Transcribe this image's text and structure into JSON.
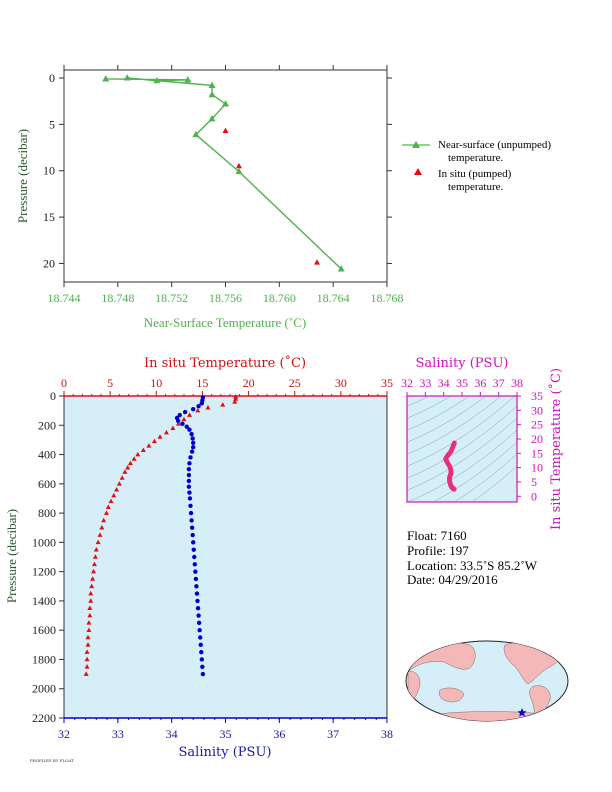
{
  "colors": {
    "near_surface": "#4db34d",
    "insitu_temp": "#e01010",
    "salinity": "#0000cc",
    "ts_accent": "#d010c0",
    "ts_points": "#e8307a",
    "profile_bg": "#d6eef8",
    "land": "#f4b8b8",
    "ocean": "#d6eef8"
  },
  "chart_data": [
    {
      "type": "line",
      "id": "near-surface",
      "xlabel": "Near-Surface Temperature (˚C)",
      "ylabel": "Pressure (decibar)",
      "xlim": [
        18.744,
        18.768
      ],
      "ylim": [
        0,
        22
      ],
      "y_inverted": true,
      "x_ticks": [
        "18.744",
        "18.748",
        "18.752",
        "18.756",
        "18.760",
        "18.764",
        "18.768"
      ],
      "y_ticks": [
        "0",
        "5",
        "10",
        "15",
        "20"
      ],
      "series": [
        {
          "name": "Near-surface (unpumped) temperature.",
          "marker": "triangle-line",
          "points": [
            [
              18.7471,
              0.1
            ],
            [
              18.7532,
              0.2
            ],
            [
              18.7509,
              0.3
            ],
            [
              18.7487,
              0.0
            ],
            [
              18.755,
              0.8
            ],
            [
              18.755,
              1.8
            ],
            [
              18.756,
              2.8
            ],
            [
              18.755,
              4.4
            ],
            [
              18.7538,
              6.1
            ],
            [
              18.757,
              10.1
            ],
            [
              18.7646,
              20.6
            ]
          ]
        },
        {
          "name": "In situ (pumped) temperature.",
          "marker": "triangle",
          "points": [
            [
              18.756,
              5.7
            ],
            [
              18.757,
              9.5
            ],
            [
              18.7628,
              19.9
            ]
          ]
        }
      ],
      "legend": {
        "position": "right",
        "entries": [
          {
            "line1": "Near-surface (unpumped)",
            "line2": "temperature."
          },
          {
            "line1": "In situ (pumped)",
            "line2": "temperature."
          }
        ]
      }
    },
    {
      "type": "scatter",
      "id": "profile",
      "top_label": "In situ Temperature (˚C)",
      "bottom_label": "Salinity (PSU)",
      "ylabel": "Pressure (decibar)",
      "temp_lim": [
        0,
        35
      ],
      "sal_lim": [
        32,
        38
      ],
      "ylim": [
        0,
        2200
      ],
      "y_inverted": true,
      "temp_ticks": [
        "0",
        "5",
        "10",
        "15",
        "20",
        "25",
        "30",
        "35"
      ],
      "sal_ticks": [
        "32",
        "33",
        "34",
        "35",
        "36",
        "37",
        "38"
      ],
      "p_ticks": [
        "0",
        "200",
        "400",
        "600",
        "800",
        "1000",
        "1200",
        "1400",
        "1600",
        "1800",
        "2000",
        "2200"
      ],
      "temperature_profile": [
        [
          18.6,
          6
        ],
        [
          18.6,
          20
        ],
        [
          18.5,
          40
        ],
        [
          17.2,
          60
        ],
        [
          15.6,
          80
        ],
        [
          14.5,
          100
        ],
        [
          13.6,
          130
        ],
        [
          13.0,
          160
        ],
        [
          12.4,
          190
        ],
        [
          11.8,
          220
        ],
        [
          11.1,
          250
        ],
        [
          10.4,
          280
        ],
        [
          9.8,
          310
        ],
        [
          9.2,
          340
        ],
        [
          8.6,
          370
        ],
        [
          8.0,
          400
        ],
        [
          7.6,
          430
        ],
        [
          7.2,
          460
        ],
        [
          6.9,
          490
        ],
        [
          6.6,
          520
        ],
        [
          6.3,
          560
        ],
        [
          6.0,
          600
        ],
        [
          5.7,
          640
        ],
        [
          5.4,
          680
        ],
        [
          5.1,
          720
        ],
        [
          4.8,
          760
        ],
        [
          4.6,
          800
        ],
        [
          4.3,
          850
        ],
        [
          4.1,
          900
        ],
        [
          3.9,
          950
        ],
        [
          3.7,
          1000
        ],
        [
          3.5,
          1050
        ],
        [
          3.4,
          1100
        ],
        [
          3.3,
          1150
        ],
        [
          3.2,
          1200
        ],
        [
          3.1,
          1250
        ],
        [
          3.0,
          1300
        ],
        [
          2.9,
          1350
        ],
        [
          2.9,
          1400
        ],
        [
          2.8,
          1450
        ],
        [
          2.8,
          1500
        ],
        [
          2.7,
          1550
        ],
        [
          2.7,
          1600
        ],
        [
          2.6,
          1650
        ],
        [
          2.6,
          1700
        ],
        [
          2.5,
          1750
        ],
        [
          2.5,
          1800
        ],
        [
          2.5,
          1850
        ],
        [
          2.4,
          1900
        ]
      ],
      "salinity_profile": [
        [
          34.58,
          10
        ],
        [
          34.57,
          30
        ],
        [
          34.56,
          50
        ],
        [
          34.5,
          70
        ],
        [
          34.4,
          90
        ],
        [
          34.25,
          110
        ],
        [
          34.15,
          130
        ],
        [
          34.1,
          150
        ],
        [
          34.12,
          170
        ],
        [
          34.2,
          190
        ],
        [
          34.28,
          210
        ],
        [
          34.33,
          230
        ],
        [
          34.37,
          260
        ],
        [
          34.39,
          290
        ],
        [
          34.4,
          320
        ],
        [
          34.4,
          350
        ],
        [
          34.38,
          380
        ],
        [
          34.35,
          420
        ],
        [
          34.33,
          460
        ],
        [
          34.32,
          500
        ],
        [
          34.32,
          540
        ],
        [
          34.32,
          580
        ],
        [
          34.32,
          620
        ],
        [
          34.33,
          660
        ],
        [
          34.34,
          700
        ],
        [
          34.35,
          750
        ],
        [
          34.36,
          800
        ],
        [
          34.37,
          850
        ],
        [
          34.38,
          900
        ],
        [
          34.39,
          950
        ],
        [
          34.4,
          1000
        ],
        [
          34.41,
          1050
        ],
        [
          34.42,
          1100
        ],
        [
          34.43,
          1150
        ],
        [
          34.44,
          1200
        ],
        [
          34.45,
          1250
        ],
        [
          34.46,
          1300
        ],
        [
          34.47,
          1350
        ],
        [
          34.48,
          1400
        ],
        [
          34.49,
          1450
        ],
        [
          34.5,
          1500
        ],
        [
          34.51,
          1550
        ],
        [
          34.52,
          1600
        ],
        [
          34.53,
          1650
        ],
        [
          34.54,
          1700
        ],
        [
          34.55,
          1750
        ],
        [
          34.56,
          1800
        ],
        [
          34.57,
          1850
        ],
        [
          34.58,
          1900
        ]
      ]
    },
    {
      "type": "scatter",
      "id": "ts-diagram",
      "top_label": "Salinity (PSU)",
      "right_label": "In situ Temperature (˚C)",
      "xlim": [
        32,
        38
      ],
      "ylim": [
        -2,
        35
      ],
      "x_ticks": [
        "32",
        "33",
        "34",
        "35",
        "36",
        "37",
        "38"
      ],
      "y_ticks": [
        "0",
        "5",
        "10",
        "15",
        "20",
        "25",
        "30",
        "35"
      ],
      "points": [
        [
          34.58,
          18.6
        ],
        [
          34.5,
          17.2
        ],
        [
          34.4,
          15.6
        ],
        [
          34.25,
          14.5
        ],
        [
          34.1,
          13.0
        ],
        [
          34.2,
          11.8
        ],
        [
          34.33,
          10.4
        ],
        [
          34.39,
          9.2
        ],
        [
          34.4,
          8.0
        ],
        [
          34.35,
          7.2
        ],
        [
          34.32,
          6.3
        ],
        [
          34.32,
          5.4
        ],
        [
          34.35,
          4.6
        ],
        [
          34.38,
          3.9
        ],
        [
          34.42,
          3.4
        ],
        [
          34.46,
          3.0
        ],
        [
          34.5,
          2.8
        ],
        [
          34.54,
          2.6
        ],
        [
          34.58,
          2.4
        ]
      ]
    }
  ],
  "info": {
    "float": "Float:  7160",
    "profile": "Profile:  197",
    "location": "Location:  33.5˚S  85.2˚W",
    "date": "Date:  04/29/2016"
  },
  "map": {
    "marker_icon": "star-icon"
  },
  "footer_text": "PROFILES BY FLOAT"
}
